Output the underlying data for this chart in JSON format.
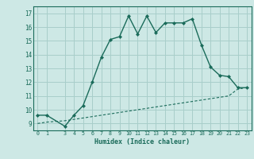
{
  "xlabel": "Humidex (Indice chaleur)",
  "bg_color": "#cde8e5",
  "line_color": "#1a6b5a",
  "grid_color": "#a8ceca",
  "x_ticks": [
    0,
    1,
    3,
    4,
    5,
    6,
    7,
    8,
    9,
    10,
    11,
    12,
    13,
    14,
    15,
    16,
    17,
    18,
    19,
    20,
    21,
    22,
    23
  ],
  "y_ticks": [
    9,
    10,
    11,
    12,
    13,
    14,
    15,
    16,
    17
  ],
  "ylim": [
    8.5,
    17.5
  ],
  "xlim": [
    -0.5,
    23.5
  ],
  "curve1_x": [
    0,
    1,
    3,
    4,
    5,
    6,
    7,
    8,
    9,
    10,
    11,
    12,
    13,
    14,
    15,
    16,
    17,
    18,
    19,
    20,
    21,
    22,
    23
  ],
  "curve1_y": [
    9.6,
    9.6,
    8.8,
    9.6,
    10.3,
    12.0,
    13.8,
    15.1,
    15.3,
    16.8,
    15.5,
    16.8,
    15.6,
    16.3,
    16.3,
    16.3,
    16.6,
    14.7,
    13.1,
    12.5,
    12.4,
    11.6,
    11.6
  ],
  "curve2_x": [
    0,
    1,
    3,
    4,
    5,
    6,
    7,
    8,
    9,
    10,
    11,
    12,
    13,
    14,
    15,
    16,
    17,
    18,
    19,
    20,
    21,
    22,
    23
  ],
  "curve2_y": [
    9.0,
    9.1,
    9.2,
    9.3,
    9.4,
    9.5,
    9.6,
    9.7,
    9.8,
    9.9,
    10.0,
    10.1,
    10.2,
    10.3,
    10.4,
    10.5,
    10.6,
    10.7,
    10.8,
    10.9,
    11.0,
    11.5,
    11.6
  ]
}
